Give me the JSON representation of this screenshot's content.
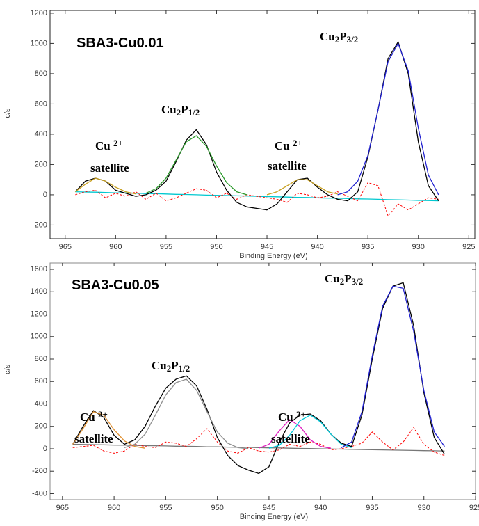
{
  "chart_data": [
    {
      "type": "line",
      "title": "SBA3-Cu0.01",
      "xlabel": "Binding Energy (eV)",
      "ylabel": "c/s",
      "xlim": [
        966.5,
        924.4
      ],
      "ylim": [
        -290,
        1218
      ],
      "xticks": [
        965,
        960,
        955,
        950,
        945,
        940,
        935,
        930,
        925
      ],
      "yticks": [
        -200,
        0,
        200,
        400,
        600,
        800,
        1000,
        1200
      ],
      "annotations": [
        [
          {
            "text": "Cu"
          },
          {
            "text": "2",
            "sub": true
          },
          {
            "text": "P"
          },
          {
            "text": "3/2",
            "sub": true
          }
        ],
        [
          {
            "text": "Cu"
          },
          {
            "text": "2",
            "sub": true
          },
          {
            "text": "P"
          },
          {
            "text": "1/2",
            "sub": true
          }
        ],
        [
          {
            "text": "Cu "
          },
          {
            "text": "2+",
            "sup": true
          }
        ],
        [
          {
            "text": "satellite"
          }
        ],
        [
          {
            "text": "Cu "
          },
          {
            "text": "2+",
            "sup": true
          }
        ],
        [
          {
            "text": "satellite"
          }
        ]
      ],
      "x": [
        964,
        963,
        962,
        961,
        960,
        959,
        958,
        957,
        956,
        955,
        954,
        953,
        952,
        951,
        950,
        949,
        948,
        947,
        946,
        945,
        944,
        943,
        942,
        941,
        940,
        939,
        938,
        937,
        936,
        935,
        934,
        933,
        932,
        931,
        930,
        929,
        928
      ],
      "series": [
        {
          "color": "#00c8d0",
          "values": [
            20,
            18,
            17,
            15,
            13,
            12,
            10,
            8,
            7,
            5,
            3,
            2,
            0,
            -2,
            -3,
            -5,
            -7,
            -8,
            -10,
            -12,
            -13,
            -15,
            -17,
            -18,
            -20,
            -22,
            -23,
            -25,
            -27,
            -28,
            -30,
            -32,
            -33,
            -35,
            -37,
            -38,
            -40
          ]
        },
        {
          "color": "#ff0000",
          "dash": true,
          "values": [
            0,
            20,
            30,
            -20,
            10,
            -10,
            20,
            -30,
            10,
            -40,
            -20,
            10,
            40,
            30,
            -20,
            10,
            -30,
            0,
            -10,
            -20,
            -30,
            -50,
            10,
            0,
            -20,
            -10,
            20,
            -10,
            -40,
            80,
            60,
            -140,
            -60,
            -100,
            -60,
            -20,
            -30
          ]
        },
        {
          "color": "#000000",
          "values": [
            20,
            90,
            110,
            90,
            30,
            10,
            -10,
            0,
            30,
            90,
            220,
            360,
            430,
            330,
            150,
            30,
            -50,
            -80,
            -90,
            -100,
            -60,
            20,
            100,
            110,
            50,
            0,
            -30,
            -40,
            20,
            250,
            560,
            900,
            1010,
            800,
            350,
            60,
            -40
          ]
        },
        {
          "color": "#c8a020",
          "values": [
            20,
            70,
            110,
            90,
            50,
            20,
            5,
            null,
            null,
            null,
            null,
            null,
            null,
            null,
            null,
            null,
            null,
            null,
            null,
            0,
            20,
            60,
            100,
            100,
            60,
            20,
            5,
            null,
            null,
            null,
            null,
            null,
            null,
            null,
            null,
            null,
            null
          ]
        },
        {
          "color": "#2a9a2a",
          "values": [
            null,
            null,
            null,
            null,
            null,
            null,
            null,
            10,
            40,
            110,
            230,
            350,
            390,
            320,
            190,
            80,
            20,
            0,
            null,
            null,
            null,
            null,
            null,
            null,
            null,
            null,
            null,
            null,
            null,
            null,
            null,
            null,
            null,
            null,
            null,
            null,
            null
          ]
        },
        {
          "color": "#2020d0",
          "values": [
            null,
            null,
            null,
            null,
            null,
            null,
            null,
            null,
            null,
            null,
            null,
            null,
            null,
            null,
            null,
            null,
            null,
            null,
            null,
            null,
            null,
            null,
            null,
            null,
            null,
            null,
            0,
            20,
            90,
            260,
            560,
            880,
            1000,
            820,
            440,
            130,
            0
          ]
        }
      ]
    },
    {
      "type": "line",
      "title": "SBA3-Cu0.05",
      "xlabel": "Binding Energy (eV)",
      "ylabel": "c/s",
      "xlim": [
        966.2,
        925.0
      ],
      "ylim": [
        -453,
        1656
      ],
      "xticks": [
        965,
        960,
        955,
        950,
        945,
        940,
        935,
        930,
        925
      ],
      "yticks": [
        -400,
        -200,
        0,
        200,
        400,
        600,
        800,
        1000,
        1200,
        1400,
        1600
      ],
      "annotations": [
        [
          {
            "text": "Cu"
          },
          {
            "text": "2",
            "sub": true
          },
          {
            "text": "P"
          },
          {
            "text": "3/2",
            "sub": true
          }
        ],
        [
          {
            "text": "Cu"
          },
          {
            "text": "2",
            "sub": true
          },
          {
            "text": "P"
          },
          {
            "text": "1/2",
            "sub": true
          }
        ],
        [
          {
            "text": "Cu "
          },
          {
            "text": "2+",
            "sup": true
          }
        ],
        [
          {
            "text": "satellite"
          }
        ],
        [
          {
            "text": "Cu "
          },
          {
            "text": "2+",
            "sup": true
          }
        ],
        [
          {
            "text": "satellite"
          }
        ]
      ],
      "x": [
        964,
        963,
        962,
        961,
        960,
        959,
        958,
        957,
        956,
        955,
        954,
        953,
        952,
        951,
        950,
        949,
        948,
        947,
        946,
        945,
        944,
        943,
        942,
        941,
        940,
        939,
        938,
        937,
        936,
        935,
        934,
        933,
        932,
        931,
        930,
        929,
        928
      ],
      "series": [
        {
          "color": "#777777",
          "values": [
            40,
            38,
            37,
            35,
            33,
            32,
            30,
            28,
            27,
            25,
            23,
            22,
            20,
            18,
            17,
            15,
            13,
            12,
            10,
            8,
            7,
            5,
            3,
            2,
            0,
            -2,
            -3,
            -5,
            -7,
            -8,
            -10,
            -12,
            -13,
            -15,
            -17,
            -18,
            -20
          ]
        },
        {
          "color": "#ff0000",
          "dash": true,
          "values": [
            10,
            20,
            30,
            -20,
            -40,
            -20,
            40,
            20,
            10,
            60,
            50,
            20,
            90,
            180,
            60,
            -20,
            -40,
            10,
            -20,
            -30,
            -10,
            40,
            20,
            60,
            40,
            -10,
            0,
            20,
            50,
            150,
            60,
            -10,
            60,
            190,
            40,
            -30,
            -60
          ]
        },
        {
          "color": "#000000",
          "values": [
            40,
            200,
            340,
            280,
            120,
            40,
            80,
            200,
            380,
            540,
            620,
            650,
            560,
            350,
            100,
            -60,
            -150,
            -190,
            -220,
            -160,
            60,
            230,
            300,
            310,
            250,
            130,
            50,
            20,
            300,
            800,
            1250,
            1450,
            1480,
            1100,
            500,
            100,
            -50
          ]
        },
        {
          "color": "#e09030",
          "values": [
            40,
            180,
            330,
            300,
            170,
            70,
            20,
            5,
            null,
            null,
            null,
            null,
            null,
            null,
            null,
            null,
            null,
            null,
            null,
            null,
            null,
            null,
            null,
            null,
            null,
            null,
            null,
            null,
            null,
            null,
            null,
            null,
            null,
            null,
            null,
            null,
            null
          ]
        },
        {
          "color": "#909090",
          "values": [
            null,
            null,
            null,
            null,
            null,
            10,
            40,
            130,
            300,
            480,
            590,
            620,
            520,
            330,
            150,
            50,
            10,
            0,
            null,
            null,
            null,
            null,
            null,
            null,
            null,
            null,
            null,
            null,
            null,
            null,
            null,
            null,
            null,
            null,
            null,
            null,
            null
          ]
        },
        {
          "color": "#e020c0",
          "values": [
            null,
            null,
            null,
            null,
            null,
            null,
            null,
            null,
            null,
            null,
            null,
            null,
            null,
            null,
            null,
            null,
            null,
            null,
            5,
            40,
            160,
            260,
            200,
            80,
            20,
            5,
            null,
            null,
            null,
            null,
            null,
            null,
            null,
            null,
            null,
            null,
            null
          ]
        },
        {
          "color": "#00c8d8",
          "values": [
            null,
            null,
            null,
            null,
            null,
            null,
            null,
            null,
            null,
            null,
            null,
            null,
            null,
            null,
            null,
            null,
            null,
            null,
            null,
            5,
            30,
            120,
            250,
            300,
            240,
            130,
            40,
            10,
            null,
            null,
            null,
            null,
            null,
            null,
            null,
            null,
            null
          ]
        },
        {
          "color": "#2020d0",
          "values": [
            null,
            null,
            null,
            null,
            null,
            null,
            null,
            null,
            null,
            null,
            null,
            null,
            null,
            null,
            null,
            null,
            null,
            null,
            null,
            null,
            null,
            null,
            null,
            null,
            null,
            null,
            10,
            60,
            330,
            830,
            1270,
            1450,
            1430,
            1050,
            520,
            150,
            20
          ]
        }
      ]
    }
  ]
}
